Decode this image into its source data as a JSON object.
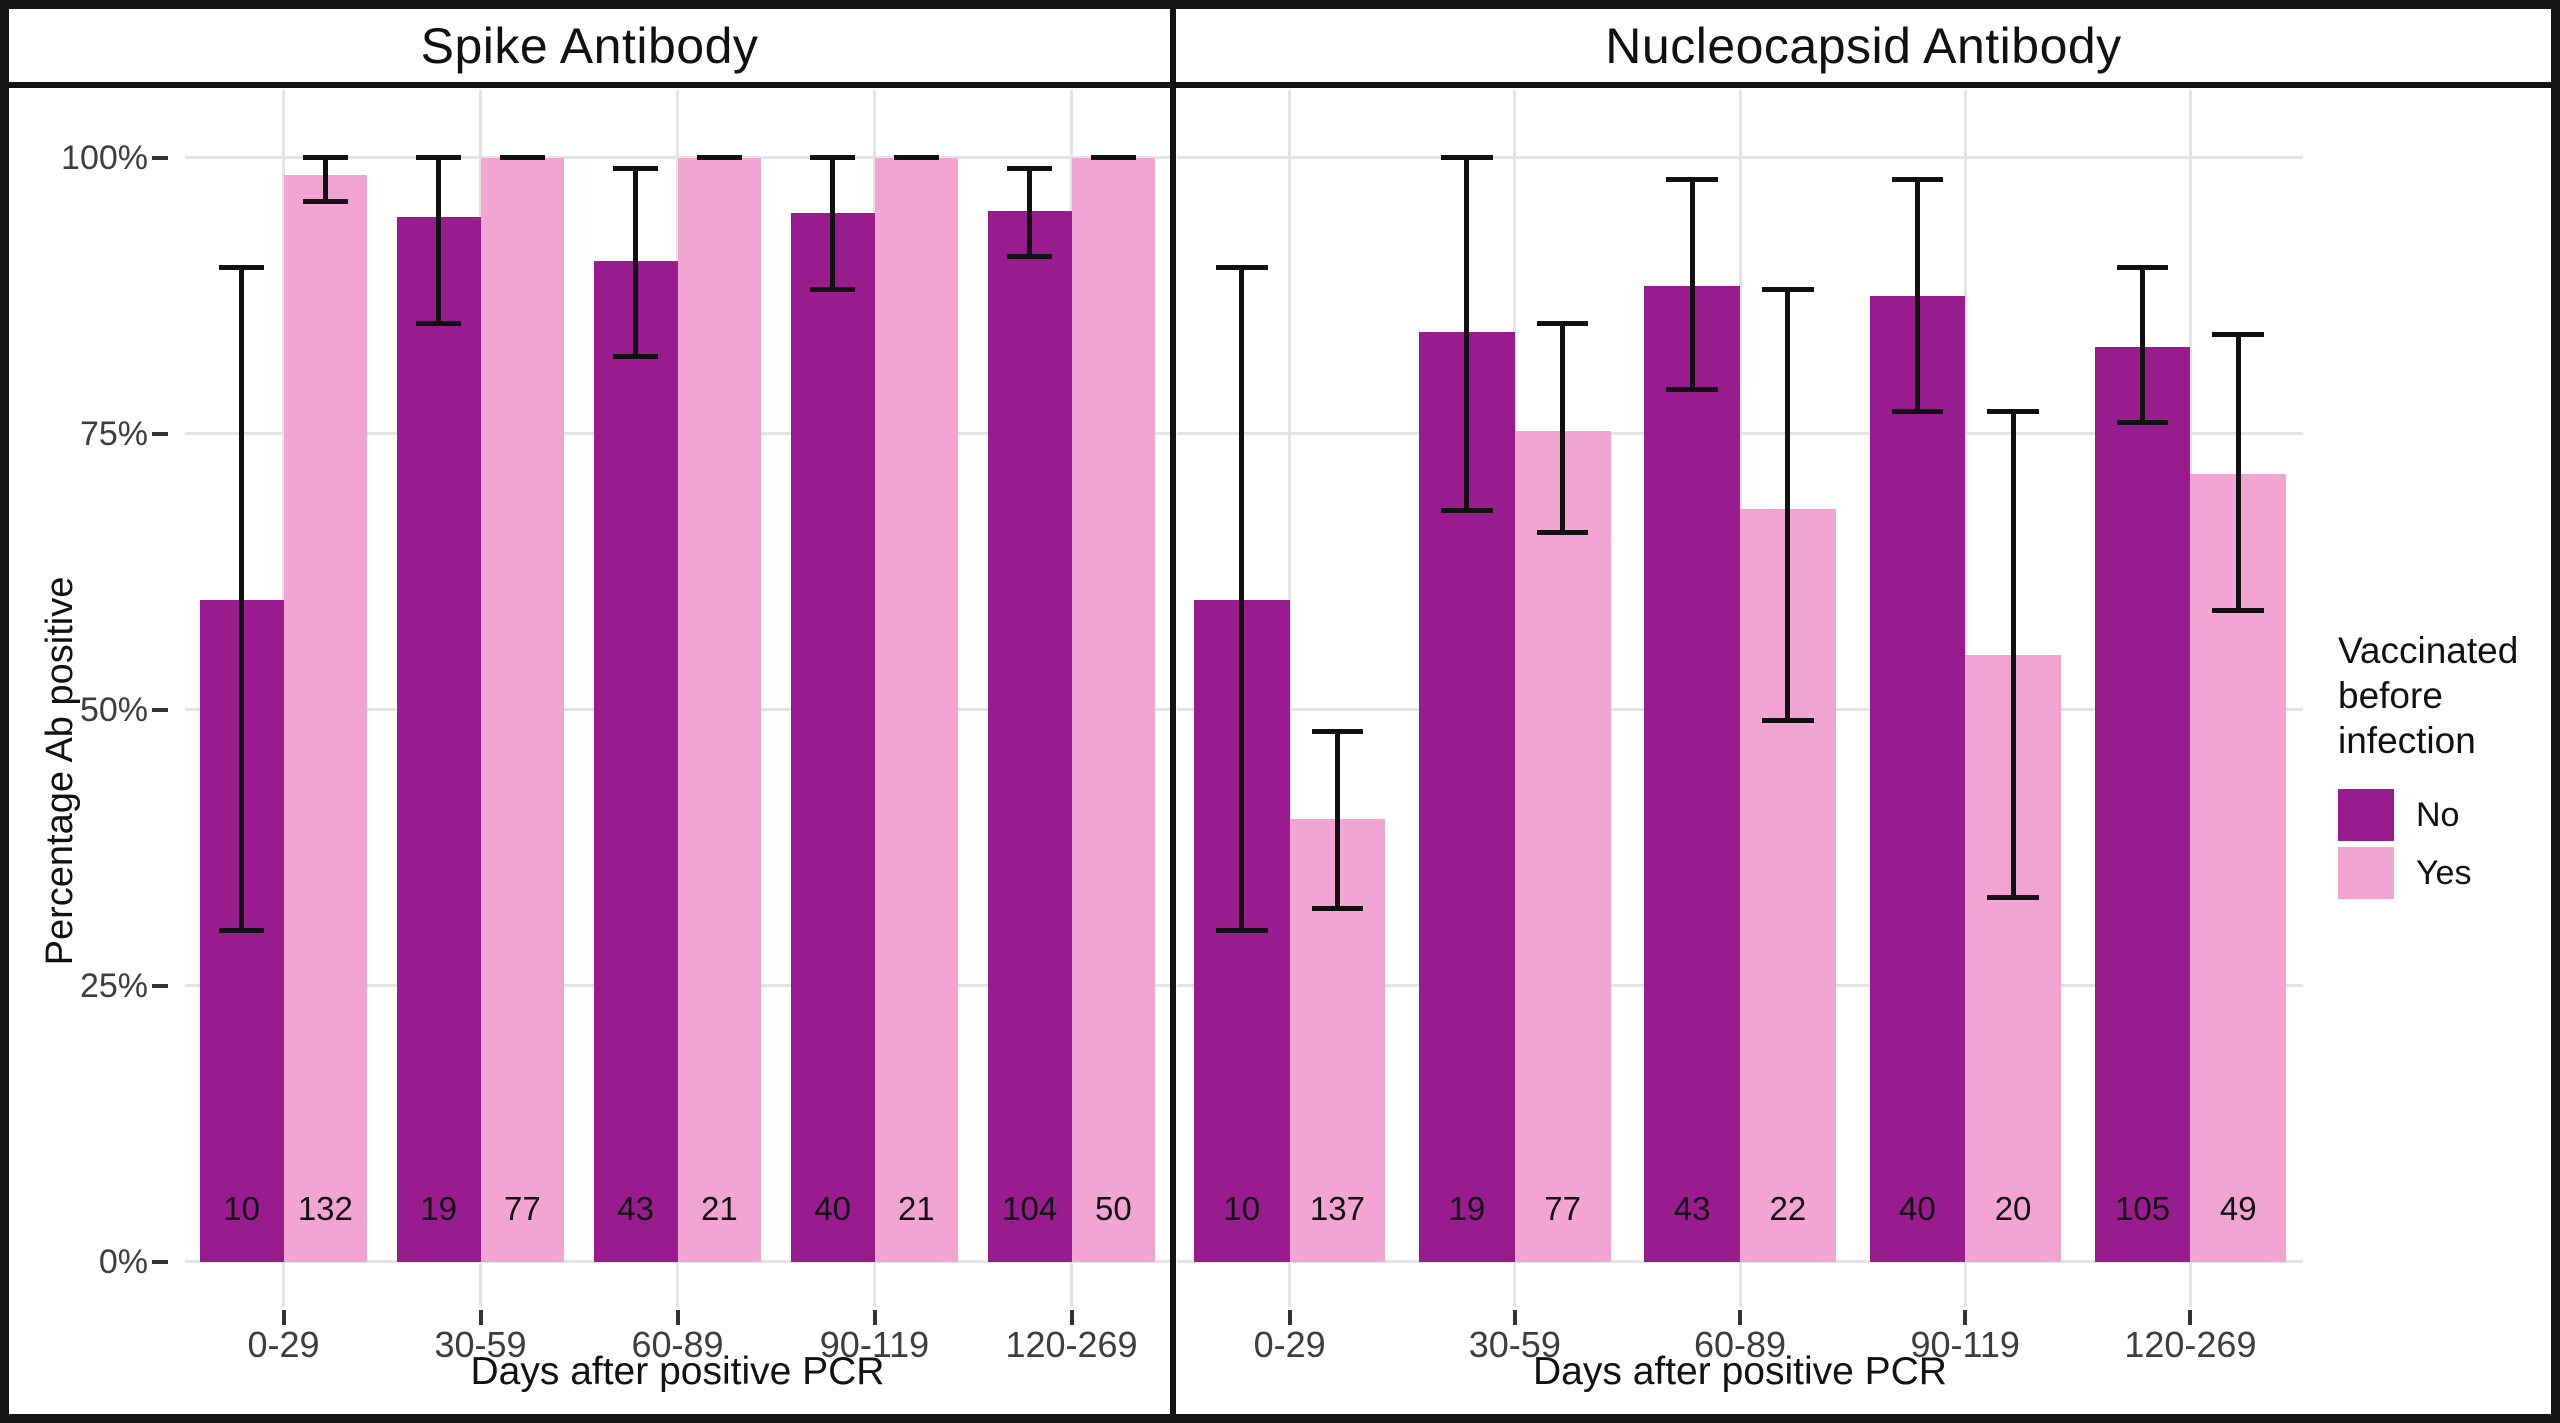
{
  "chart_data": {
    "type": "bar",
    "grouped": true,
    "title": "",
    "xlabel": "Days after positive PCR",
    "ylabel": "Percentage Ab positive",
    "ylim": [
      0,
      100
    ],
    "y_ticks": [
      "0%",
      "25%",
      "50%",
      "75%",
      "100%"
    ],
    "grid": "major horizontal and vertical, light gray",
    "legend": {
      "title": "Vaccinated before infection",
      "position": "right",
      "items": [
        {
          "label": "No",
          "color": "#981C8E"
        },
        {
          "label": "Yes",
          "color": "#F2A5D3"
        }
      ]
    },
    "categories": [
      "0-29",
      "30-59",
      "60-89",
      "90-119",
      "120-269"
    ],
    "panels": [
      {
        "title": "Spike Antibody",
        "series": [
          {
            "name": "No",
            "values": [
              60,
              94.7,
              90.7,
              95,
              95.2
            ],
            "ci_low": [
              30,
              85,
              82,
              88,
              91
            ],
            "ci_high": [
              90,
              100,
              99,
              100,
              99
            ],
            "counts": [
              10,
              19,
              43,
              40,
              104
            ]
          },
          {
            "name": "Yes",
            "values": [
              98.5,
              100,
              100,
              100,
              100
            ],
            "ci_low": [
              96,
              100,
              100,
              100,
              100
            ],
            "ci_high": [
              100,
              100,
              100,
              100,
              100
            ],
            "counts": [
              132,
              77,
              21,
              21,
              50
            ]
          }
        ]
      },
      {
        "title": "Nucleocapsid Antibody",
        "series": [
          {
            "name": "No",
            "values": [
              60,
              84.2,
              88.4,
              87.5,
              82.9
            ],
            "ci_low": [
              30,
              68,
              79,
              77,
              76
            ],
            "ci_high": [
              90,
              100,
              98,
              98,
              90
            ],
            "counts": [
              10,
              19,
              43,
              40,
              105
            ]
          },
          {
            "name": "Yes",
            "values": [
              40.1,
              75.3,
              68.2,
              55,
              71.4
            ],
            "ci_low": [
              32,
              66,
              49,
              33,
              59
            ],
            "ci_high": [
              48,
              85,
              88,
              77,
              84
            ],
            "counts": [
              137,
              77,
              22,
              20,
              49
            ]
          }
        ]
      }
    ]
  },
  "style_colors": {
    "frame": "#141414",
    "gridline": "#e4e4e4",
    "tick_text": "#3d3d3d",
    "error_bar": "#111111",
    "background": "#ffffff"
  }
}
